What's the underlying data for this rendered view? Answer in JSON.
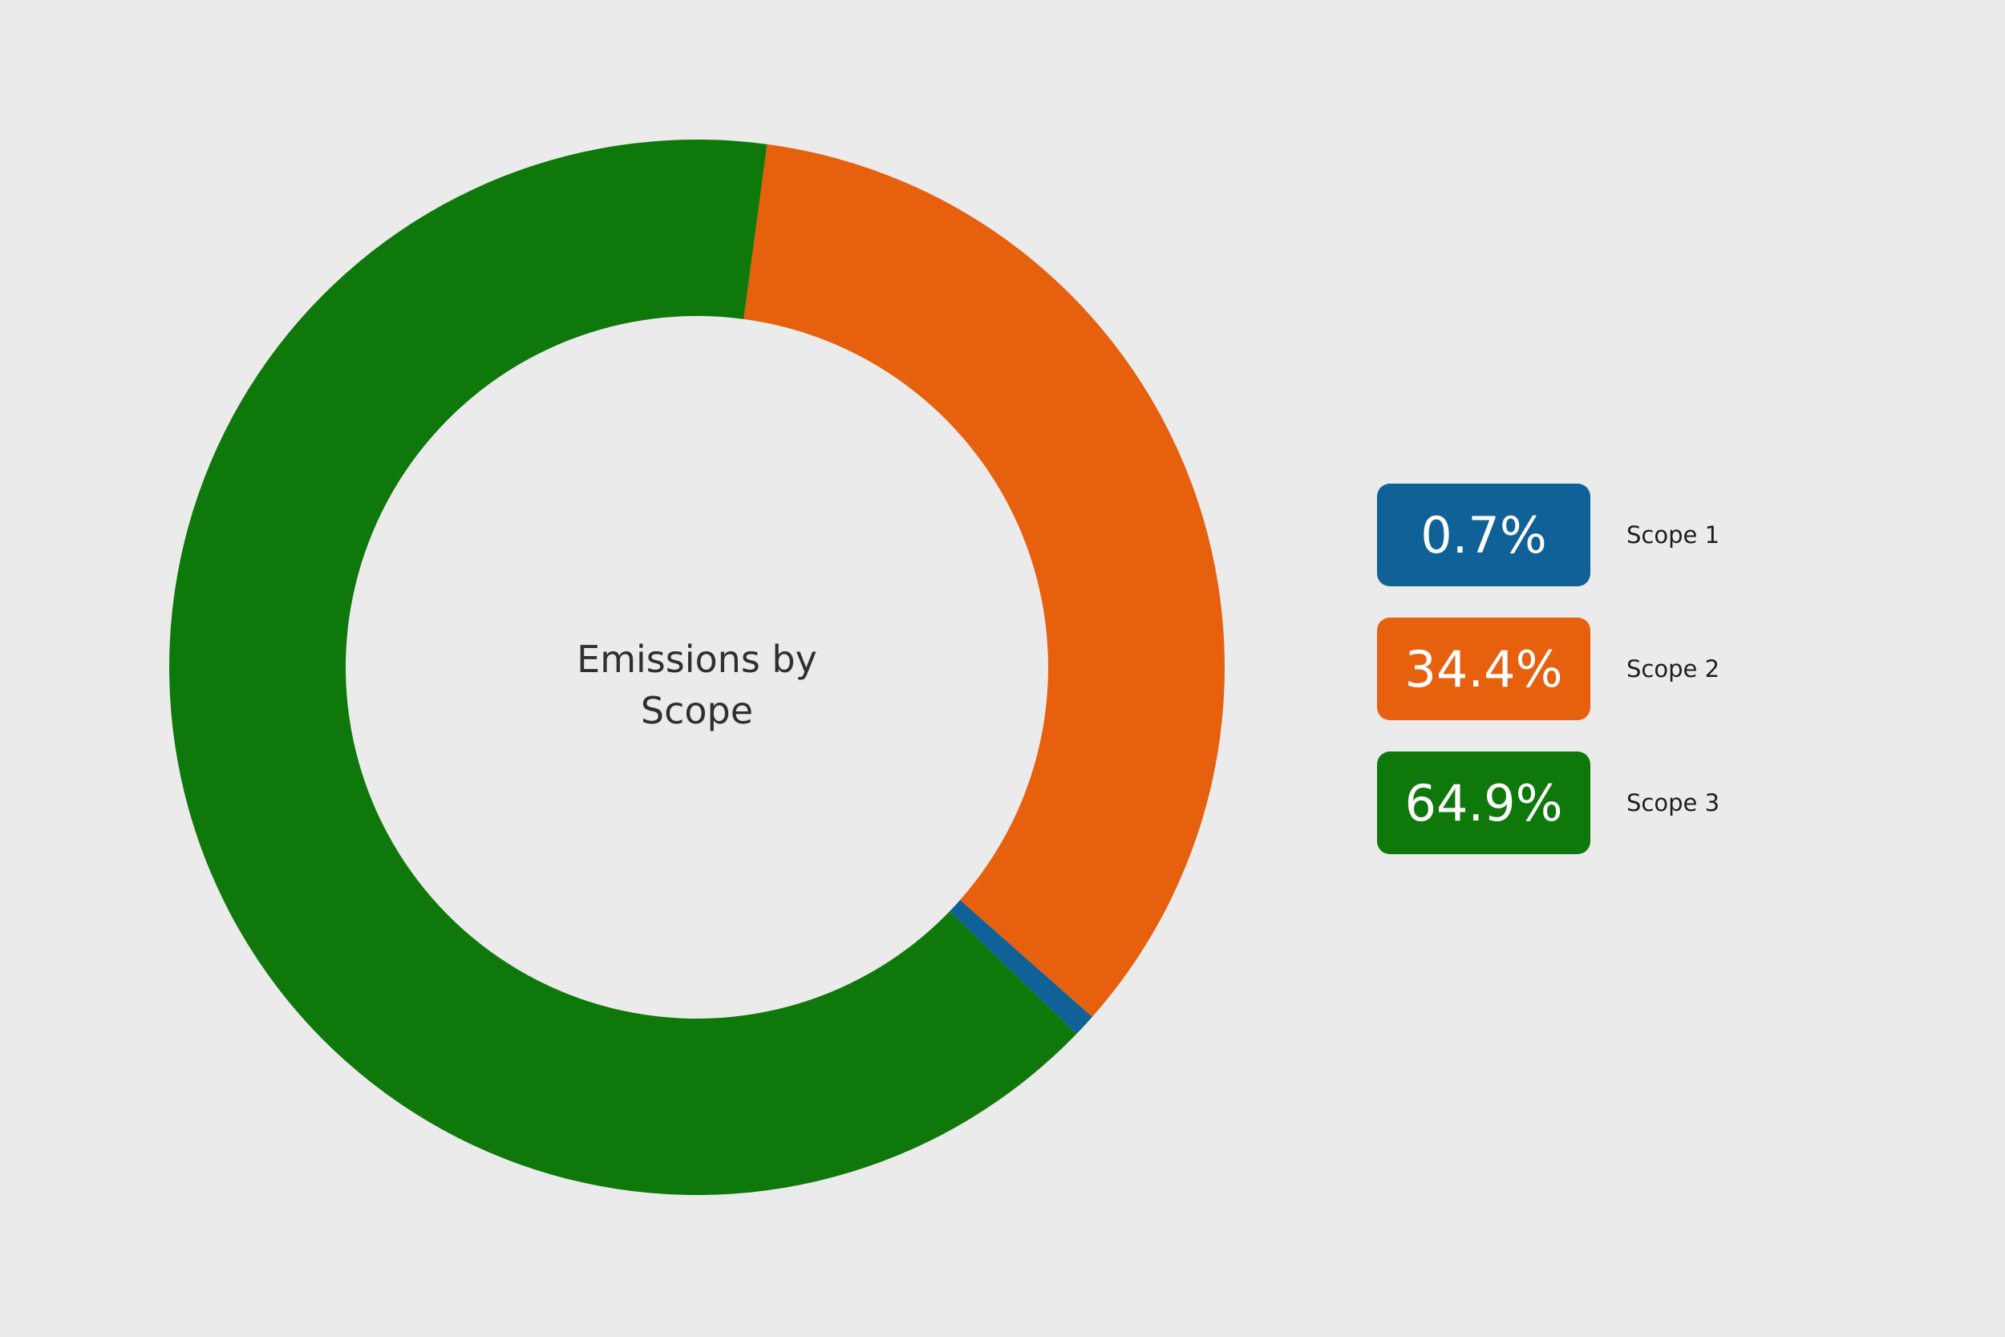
{
  "chart_data": {
    "type": "donut",
    "title": "Emissions by Scope",
    "categories": [
      "Scope 1",
      "Scope 2",
      "Scope 3"
    ],
    "values": [
      0.7,
      34.4,
      64.9
    ],
    "value_labels": [
      "0.7%",
      "34.4%",
      "64.9%"
    ],
    "colors": [
      "#0f6198",
      "#e6600e",
      "#0f780b"
    ]
  }
}
